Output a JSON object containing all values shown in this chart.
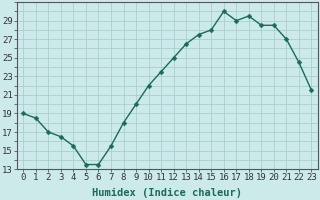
{
  "x": [
    0,
    1,
    2,
    3,
    4,
    5,
    6,
    7,
    8,
    9,
    10,
    11,
    12,
    13,
    14,
    15,
    16,
    17,
    18,
    19,
    20,
    21,
    22,
    23
  ],
  "y": [
    19,
    18.5,
    17,
    16.5,
    15.5,
    13.5,
    13.5,
    15.5,
    18,
    20,
    22,
    23.5,
    25,
    26.5,
    27.5,
    28,
    30,
    29,
    29.5,
    28.5,
    28.5,
    27,
    24.5,
    21.5
  ],
  "line_color": "#1a6b5a",
  "marker": "D",
  "marker_size": 2.5,
  "background_color": "#cdeaea",
  "grid_major_color": "#aacece",
  "grid_minor_color": "#bddada",
  "xlabel": "Humidex (Indice chaleur)",
  "ylim": [
    13,
    31
  ],
  "xlim": [
    -0.5,
    23.5
  ],
  "yticks": [
    13,
    15,
    17,
    19,
    21,
    23,
    25,
    27,
    29
  ],
  "xticks": [
    0,
    1,
    2,
    3,
    4,
    5,
    6,
    7,
    8,
    9,
    10,
    11,
    12,
    13,
    14,
    15,
    16,
    17,
    18,
    19,
    20,
    21,
    22,
    23
  ],
  "tick_fontsize": 6.5,
  "xlabel_fontsize": 7.5,
  "line_width": 1.0,
  "marker_color": "#1a6b5a",
  "spine_color": "#555555",
  "tick_color": "#333333"
}
